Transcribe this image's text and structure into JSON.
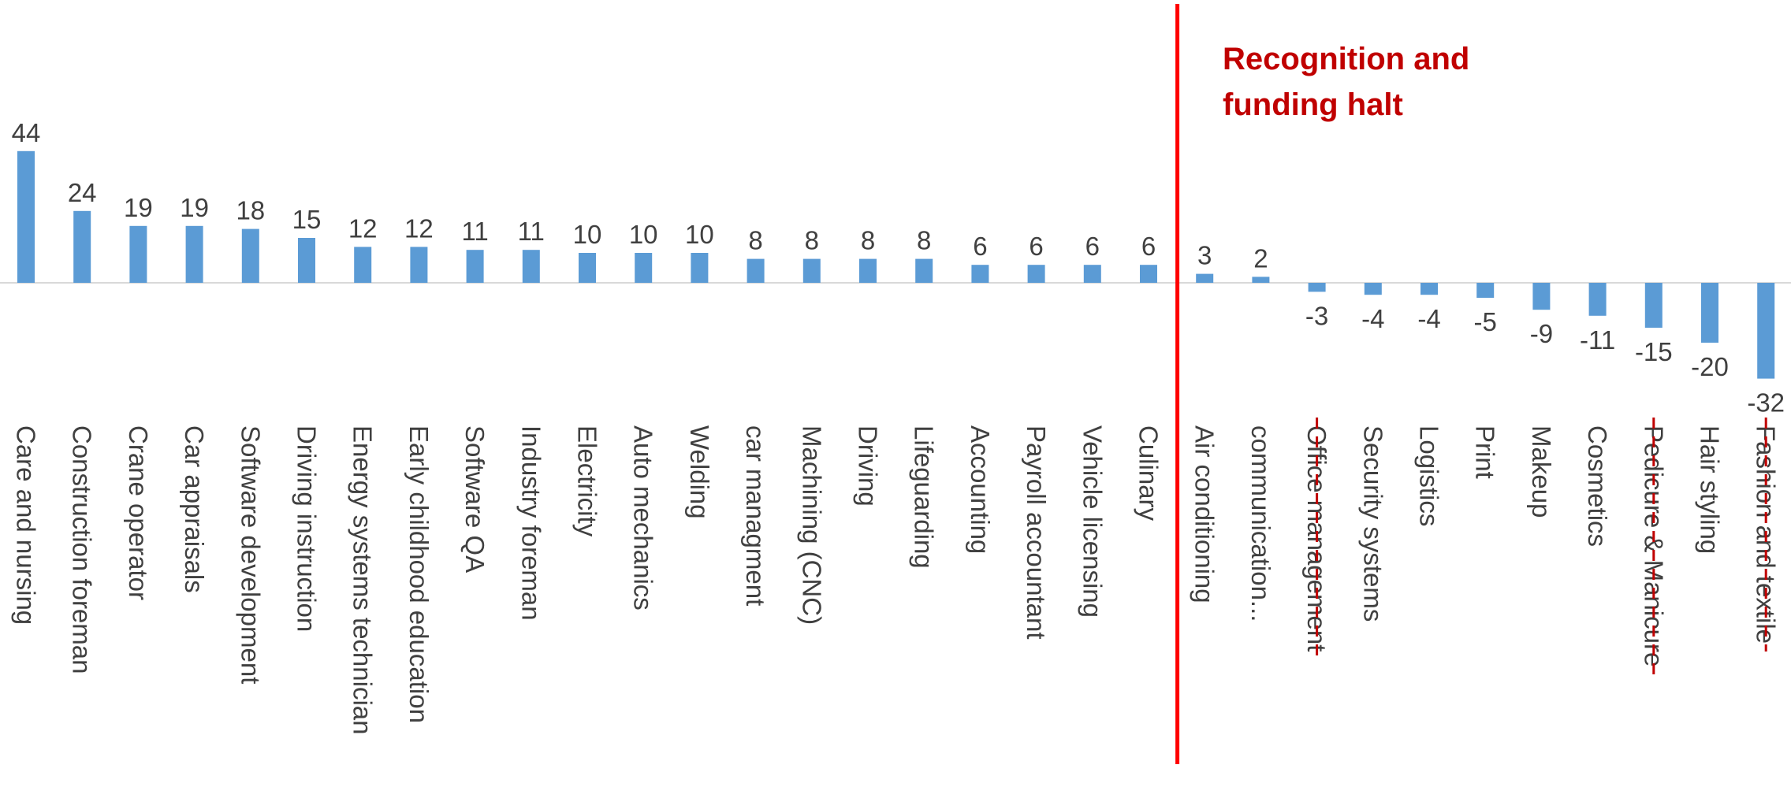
{
  "chart_data": {
    "type": "bar",
    "categories": [
      "Care and nursing",
      "Construction foreman",
      "Crane operator",
      "Car appraisals",
      "Software development",
      "Driving instruction",
      "Energy systems technician",
      "Early childhood education",
      "Software QA",
      "Industry foreman",
      "Electricity",
      "Auto mechanics",
      "Welding",
      "car managment",
      "Machining (CNC)",
      "Driving",
      "Lifeguarding",
      "Accounting",
      "Payroll accountant",
      "Vehicle licensing",
      "Culinary",
      "Air conditioning",
      "communication...",
      "Office management",
      "Security systems",
      "Logistics",
      "Print",
      "Makeup",
      "Cosmetics",
      "Pedicure & Manicure",
      "Hair styling",
      "Fashion and textile"
    ],
    "values": [
      44,
      24,
      19,
      19,
      18,
      15,
      12,
      12,
      11,
      11,
      10,
      10,
      10,
      8,
      8,
      8,
      8,
      6,
      6,
      6,
      6,
      3,
      2,
      -3,
      -4,
      -4,
      -5,
      -9,
      -11,
      -15,
      -20,
      -32
    ],
    "struck_categories": [
      "Office management",
      "Pedicure & Manicure",
      "Fashion and textile"
    ],
    "annotation": "Recognition and funding halt",
    "divider_after_category": "Culinary",
    "ylim": [
      -35,
      50
    ],
    "title": "",
    "xlabel": "",
    "ylabel": "",
    "grid": false,
    "legend": "none",
    "colors": {
      "bar": "#5b9bd5",
      "divider": "#ff0000",
      "annotation": "#c00000",
      "strike": "#c00000",
      "text": "#404040",
      "axis": "#d9d9d9"
    }
  }
}
